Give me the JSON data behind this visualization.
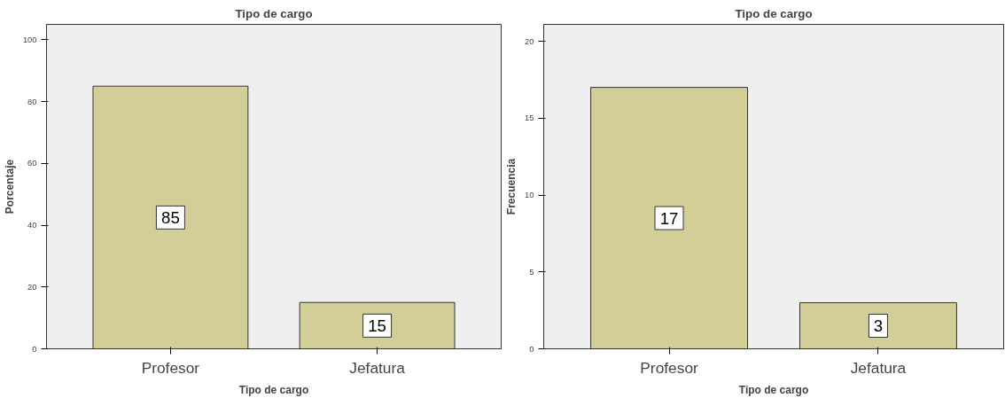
{
  "chart_data": [
    {
      "type": "bar",
      "title": "Tipo de cargo",
      "xlabel": "Tipo de cargo",
      "ylabel": "Porcentaje",
      "categories": [
        "Profesor",
        "Jefatura"
      ],
      "values": [
        85,
        15
      ],
      "color": "#d3cd98",
      "ylim": [
        0,
        105
      ],
      "yticks": [
        0,
        20,
        40,
        60,
        80,
        100
      ],
      "data_labels": true
    },
    {
      "type": "bar",
      "title": "Tipo de cargo",
      "xlabel": "Tipo de cargo",
      "ylabel": "Frecuencia",
      "categories": [
        "Profesor",
        "Jefatura"
      ],
      "values": [
        17,
        3
      ],
      "color": "#d3cd98",
      "ylim": [
        0,
        21.1
      ],
      "yticks": [
        0,
        5,
        10,
        15,
        20
      ],
      "data_labels": true
    }
  ]
}
